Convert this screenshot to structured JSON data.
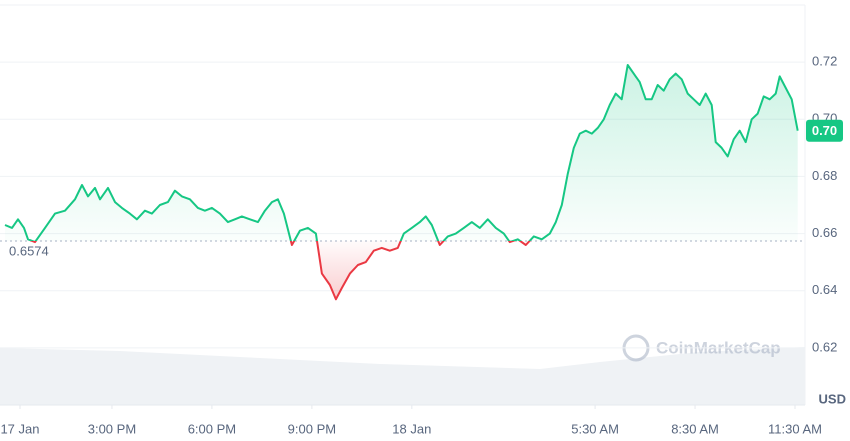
{
  "chart_data": {
    "type": "line",
    "baseline": 0.6574,
    "current_price": 0.696,
    "current_price_label": "0.70",
    "y_unit": "USD",
    "watermark": "CoinMarketCap",
    "up_color": "#16c784",
    "down_color": "#ea3943",
    "grid": true,
    "ylim": [
      0.6,
      0.74
    ],
    "yticks": [
      0.62,
      0.64,
      0.66,
      0.68,
      {
        "value": 0.7,
        "label": "0.70"
      },
      0.72
    ],
    "xlim": [
      11.64,
      35.8
    ],
    "xticks": [
      {
        "value": 12.24,
        "label": "17 Jan"
      },
      {
        "value": 15.0,
        "label": "3:00 PM"
      },
      {
        "value": 18.0,
        "label": "6:00 PM"
      },
      {
        "value": 21.0,
        "label": "9:00 PM"
      },
      {
        "value": 24.0,
        "label": "18 Jan"
      },
      {
        "value": 29.5,
        "label": "5:30 AM"
      },
      {
        "value": 32.5,
        "label": "8:30 AM"
      },
      {
        "value": 35.5,
        "label": "11:30 AM"
      }
    ],
    "x": [
      11.79,
      12.0,
      12.18,
      12.36,
      12.48,
      12.69,
      12.99,
      13.29,
      13.59,
      13.89,
      14.1,
      14.28,
      14.49,
      14.64,
      14.88,
      15.09,
      15.3,
      15.54,
      15.75,
      15.99,
      16.2,
      16.44,
      16.68,
      16.89,
      17.1,
      17.34,
      17.58,
      17.79,
      18.0,
      18.24,
      18.48,
      18.69,
      18.9,
      19.14,
      19.38,
      19.59,
      19.8,
      19.98,
      20.16,
      20.4,
      20.64,
      20.88,
      21.12,
      21.3,
      21.54,
      21.72,
      21.9,
      22.14,
      22.38,
      22.62,
      22.86,
      23.1,
      23.34,
      23.58,
      23.76,
      24.0,
      24.24,
      24.42,
      24.6,
      24.84,
      25.08,
      25.32,
      25.56,
      25.8,
      26.04,
      26.28,
      26.52,
      26.76,
      26.94,
      27.18,
      27.42,
      27.66,
      27.9,
      28.14,
      28.32,
      28.5,
      28.68,
      28.86,
      29.04,
      29.22,
      29.4,
      29.58,
      29.76,
      29.94,
      30.12,
      30.3,
      30.48,
      30.66,
      30.84,
      31.02,
      31.2,
      31.38,
      31.56,
      31.74,
      31.92,
      32.1,
      32.28,
      32.46,
      32.64,
      32.82,
      33.0,
      33.12,
      33.3,
      33.48,
      33.66,
      33.84,
      34.02,
      34.2,
      34.38,
      34.56,
      34.74,
      34.92,
      35.04,
      35.22,
      35.4,
      35.58
    ],
    "values": [
      0.663,
      0.662,
      0.665,
      0.662,
      0.658,
      0.657,
      0.662,
      0.667,
      0.668,
      0.672,
      0.677,
      0.673,
      0.676,
      0.672,
      0.676,
      0.671,
      0.669,
      0.667,
      0.665,
      0.668,
      0.667,
      0.67,
      0.671,
      0.675,
      0.673,
      0.672,
      0.669,
      0.668,
      0.669,
      0.667,
      0.664,
      0.665,
      0.666,
      0.665,
      0.664,
      0.668,
      0.671,
      0.672,
      0.667,
      0.656,
      0.661,
      0.662,
      0.66,
      0.646,
      0.642,
      0.637,
      0.641,
      0.646,
      0.649,
      0.65,
      0.654,
      0.655,
      0.654,
      0.655,
      0.66,
      0.662,
      0.664,
      0.666,
      0.663,
      0.656,
      0.659,
      0.66,
      0.662,
      0.664,
      0.662,
      0.665,
      0.662,
      0.66,
      0.657,
      0.658,
      0.656,
      0.659,
      0.658,
      0.66,
      0.664,
      0.67,
      0.681,
      0.69,
      0.695,
      0.696,
      0.695,
      0.697,
      0.7,
      0.705,
      0.709,
      0.707,
      0.719,
      0.716,
      0.713,
      0.707,
      0.707,
      0.712,
      0.71,
      0.714,
      0.716,
      0.714,
      0.709,
      0.707,
      0.705,
      0.709,
      0.705,
      0.692,
      0.69,
      0.687,
      0.693,
      0.696,
      0.692,
      0.7,
      0.702,
      0.708,
      0.707,
      0.709,
      0.715,
      0.711,
      0.707,
      0.696
    ]
  }
}
